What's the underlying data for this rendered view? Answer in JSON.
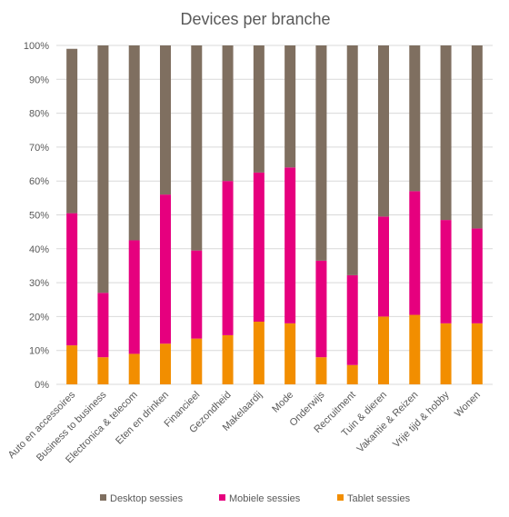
{
  "chart_data": {
    "type": "bar",
    "stacked": true,
    "title": "Devices per branche",
    "xlabel": "",
    "ylabel": "",
    "ylim": [
      0,
      100
    ],
    "yticks": [
      "0%",
      "10%",
      "20%",
      "30%",
      "40%",
      "50%",
      "60%",
      "70%",
      "80%",
      "90%",
      "100%"
    ],
    "grid": true,
    "legend_position": "bottom",
    "categories": [
      "Auto en accessoires",
      "Business to business",
      "Electronica & telecom",
      "Eten en drinken",
      "Financieel",
      "Gezondheid",
      "Makelaardij",
      "Mode",
      "Onderwijs",
      "Recruitment",
      "Tuin & dieren",
      "Vakantie & Reizen",
      "Vrije tijd & hobby",
      "Wonen"
    ],
    "series": [
      {
        "name": "Tablet sessies",
        "color": "#F28E00",
        "values": [
          11.5,
          8,
          9,
          12,
          13.5,
          14.5,
          18.5,
          18,
          8,
          5.7,
          20,
          20.5,
          18,
          18
        ]
      },
      {
        "name": "Mobiele sessies",
        "color": "#E6007E",
        "values": [
          39,
          19,
          33.5,
          44,
          26,
          45.5,
          44,
          46,
          28.5,
          26.5,
          29.5,
          36.5,
          30.5,
          28
        ]
      },
      {
        "name": "Desktop sessies",
        "color": "#7F6F60",
        "values": [
          48.5,
          73,
          57.5,
          44,
          60.5,
          40,
          37.5,
          36,
          63.5,
          67.8,
          50.5,
          43,
          51.5,
          54
        ]
      }
    ],
    "legend_order": [
      "Desktop sessies",
      "Mobiele sessies",
      "Tablet sessies"
    ]
  }
}
